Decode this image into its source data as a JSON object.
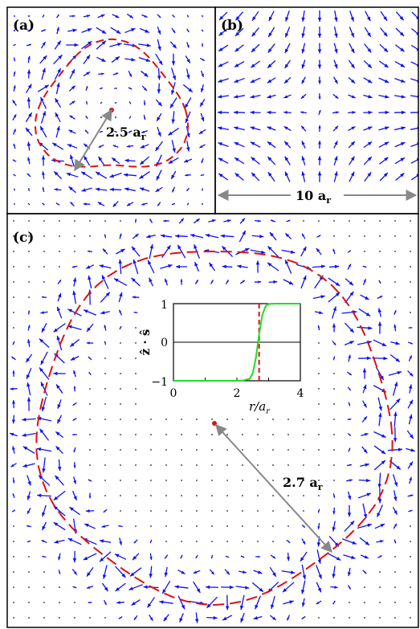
{
  "panels": {
    "a": {
      "label": "(a)",
      "distance_label": "2.5 a",
      "distance_subscript": "r"
    },
    "b": {
      "label": "(b)",
      "distance_label": "10 a",
      "distance_subscript": "r"
    },
    "c": {
      "label": "(c)",
      "distance_label": "2.7 a",
      "distance_subscript": "r"
    }
  },
  "inset": {
    "ylabel": "ẑ · ŝ",
    "xlabel": "r/a",
    "xlabel_subscript": "r",
    "xticks": [
      "0",
      "2",
      "4"
    ],
    "yticks": [
      "1",
      "0",
      "−1"
    ]
  },
  "colors": {
    "arrows": "#1010ee",
    "ring": "#dd1111",
    "profile": "#22dd22",
    "dimension": "#888888",
    "center": "#dd1111",
    "dots": "#1a1a4a"
  },
  "chart_data": {
    "type": "line",
    "xlabel": "r/a_r",
    "ylabel": "ẑ · ŝ",
    "xlim": [
      0,
      4
    ],
    "ylim": [
      -1,
      1
    ],
    "series": [
      {
        "x": [
          0,
          0.5,
          1.0,
          1.5,
          2.0,
          2.2,
          2.4,
          2.5,
          2.6,
          2.7,
          2.8,
          2.9,
          3.0,
          3.2,
          3.5,
          4.0
        ],
        "values": [
          -1,
          -1,
          -1,
          -1,
          -1,
          -0.99,
          -0.95,
          -0.8,
          -0.4,
          0.2,
          0.7,
          0.93,
          0.99,
          1,
          1,
          1
        ]
      }
    ],
    "vertical_marker_x": 2.7
  }
}
